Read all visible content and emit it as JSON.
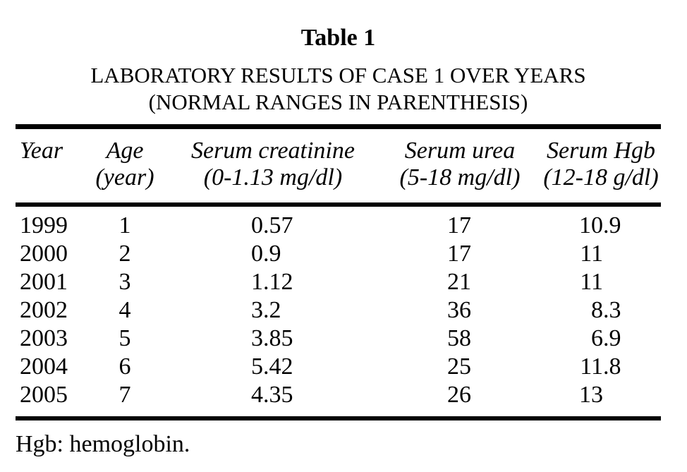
{
  "figure": {
    "label": "Table 1",
    "title_line1": "LABORATORY RESULTS OF CASE 1 OVER YEARS",
    "title_line2": "(NORMAL RANGES IN PARENTHESIS)",
    "footnote": "Hgb: hemoglobin."
  },
  "columns": [
    {
      "name": "Year",
      "range": ""
    },
    {
      "name": "Age",
      "range": "(year)"
    },
    {
      "name": "Serum creatinine",
      "range": "(0-1.13 mg/dl)"
    },
    {
      "name": "Serum urea",
      "range": "(5-18 mg/dl)"
    },
    {
      "name": "Serum Hgb",
      "range": "(12-18 g/dl)"
    }
  ],
  "rows": [
    {
      "year": "1999",
      "age": "1",
      "creatinine": "0.57",
      "urea": "17",
      "hgb": "10.9"
    },
    {
      "year": "2000",
      "age": "2",
      "creatinine": "0.9",
      "urea": "17",
      "hgb": "11"
    },
    {
      "year": "2001",
      "age": "3",
      "creatinine": "1.12",
      "urea": "21",
      "hgb": "11"
    },
    {
      "year": "2002",
      "age": "4",
      "creatinine": "3.2",
      "urea": "36",
      "hgb": "8.3"
    },
    {
      "year": "2003",
      "age": "5",
      "creatinine": "3.85",
      "urea": "58",
      "hgb": "6.9"
    },
    {
      "year": "2004",
      "age": "6",
      "creatinine": "5.42",
      "urea": "25",
      "hgb": "11.8"
    },
    {
      "year": "2005",
      "age": "7",
      "creatinine": "4.35",
      "urea": "26",
      "hgb": "13"
    }
  ],
  "chart_data": {
    "type": "table",
    "title": "Table 1 — LABORATORY RESULTS OF CASE 1 OVER YEARS (NORMAL RANGES IN PARENTHESIS)",
    "categories": [
      "Year",
      "Age (year)",
      "Serum creatinine (0-1.13 mg/dl)",
      "Serum urea (5-18 mg/dl)",
      "Serum Hgb (12-18 g/dl)"
    ],
    "x": [
      1999,
      2000,
      2001,
      2002,
      2003,
      2004,
      2005
    ],
    "series": [
      {
        "name": "Age (year)",
        "values": [
          1,
          2,
          3,
          4,
          5,
          6,
          7
        ]
      },
      {
        "name": "Serum creatinine (0-1.13 mg/dl)",
        "values": [
          0.57,
          0.9,
          1.12,
          3.2,
          3.85,
          5.42,
          4.35
        ]
      },
      {
        "name": "Serum urea (5-18 mg/dl)",
        "values": [
          17,
          17,
          21,
          36,
          58,
          25,
          26
        ]
      },
      {
        "name": "Serum Hgb (12-18 g/dl)",
        "values": [
          10.9,
          11,
          11,
          8.3,
          6.9,
          11.8,
          13
        ]
      }
    ],
    "footnote": "Hgb: hemoglobin."
  },
  "colors": {
    "text": "#000000",
    "background": "#ffffff",
    "rule": "#000000"
  }
}
